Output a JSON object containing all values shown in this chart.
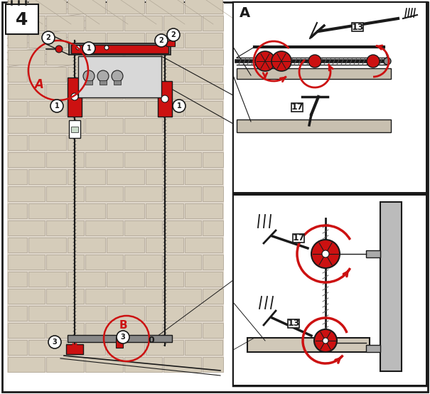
{
  "bg_color": "#ffffff",
  "dark": "#1a1a1a",
  "red": "#cc1111",
  "gray_medium": "#888888",
  "gray_light": "#cccccc",
  "gray_dark": "#555555",
  "wall_bg": "#e0d8cc",
  "brick_fill": "#d5ccba",
  "brick_edge": "#aaa090",
  "panel_bg": "#f8f8f8",
  "step_num": "4",
  "label_A_main": "A",
  "label_B_main": "B",
  "label_A_panel": "A",
  "lbl13": "13",
  "lbl17": "17"
}
